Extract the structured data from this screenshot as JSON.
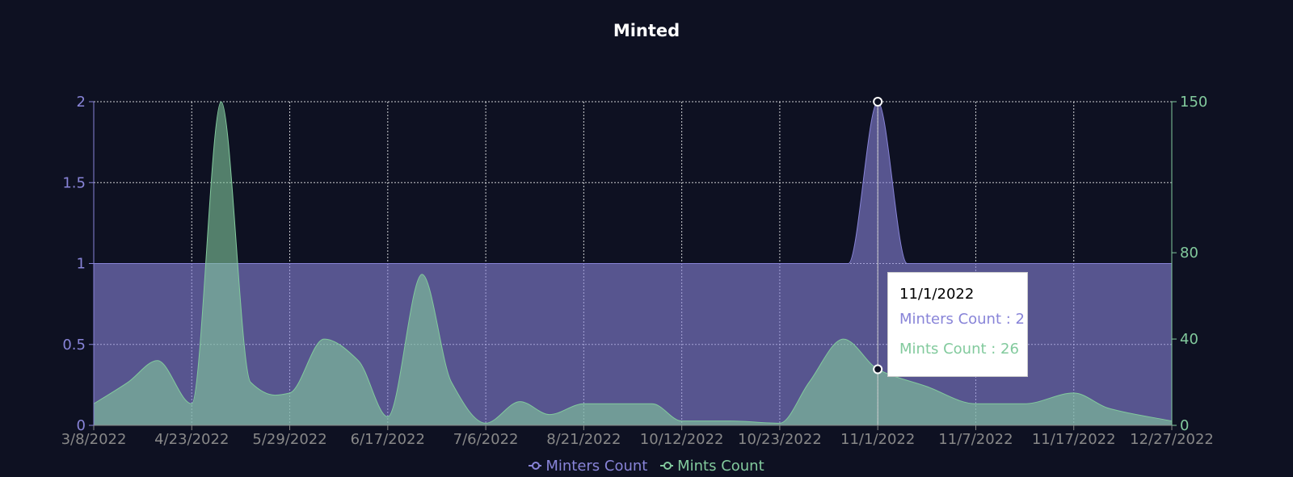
{
  "chart_data": {
    "type": "area",
    "title": "Minted",
    "colors": {
      "minters": "#8884d8",
      "mints": "#82ca9d",
      "background": "#0e1122"
    },
    "x": [
      "3/8/2022",
      "4/23/2022",
      "5/29/2022",
      "6/17/2022",
      "7/6/2022",
      "8/21/2022",
      "10/12/2022",
      "10/23/2022",
      "11/1/2022",
      "11/7/2022",
      "11/17/2022",
      "12/27/2022"
    ],
    "left_axis": {
      "ylim": [
        0,
        2
      ],
      "ticks": [
        "0",
        "0.5",
        "1",
        "1.5",
        "2"
      ]
    },
    "right_axis": {
      "ylim": [
        0,
        150
      ],
      "ticks": [
        "0",
        "40",
        "80",
        "150"
      ]
    },
    "series": [
      {
        "name": "Minters Count",
        "axis": "left",
        "x": [
          0,
          1,
          2,
          3,
          4,
          5,
          6,
          7,
          7.7,
          8,
          8.3,
          9,
          10,
          11
        ],
        "values": [
          1,
          1,
          1,
          1,
          1,
          1,
          1,
          1,
          1,
          2,
          1,
          1,
          1,
          1
        ]
      },
      {
        "name": "Mints Count",
        "axis": "right",
        "x": [
          0,
          0.35,
          0.65,
          1,
          1.3,
          1.6,
          1.85,
          2,
          2.35,
          2.7,
          3,
          3.35,
          3.65,
          4,
          4.35,
          4.65,
          5,
          5.7,
          6,
          6.5,
          7,
          7.3,
          7.65,
          8,
          8.5,
          9,
          9.5,
          10,
          10.35,
          11
        ],
        "values": [
          10,
          20,
          30,
          10,
          150,
          20,
          14,
          15,
          40,
          30,
          4,
          70,
          20,
          1,
          11,
          5,
          10,
          10,
          2,
          2,
          1,
          20,
          40,
          26,
          18,
          10,
          10,
          15,
          8,
          2
        ]
      }
    ],
    "tooltip": {
      "date": "11/1/2022",
      "minters_line": "Minters Count : 2",
      "mints_line": "Mints Count : 26",
      "index": 8
    },
    "grid": true,
    "legend_position": "bottom-center"
  }
}
